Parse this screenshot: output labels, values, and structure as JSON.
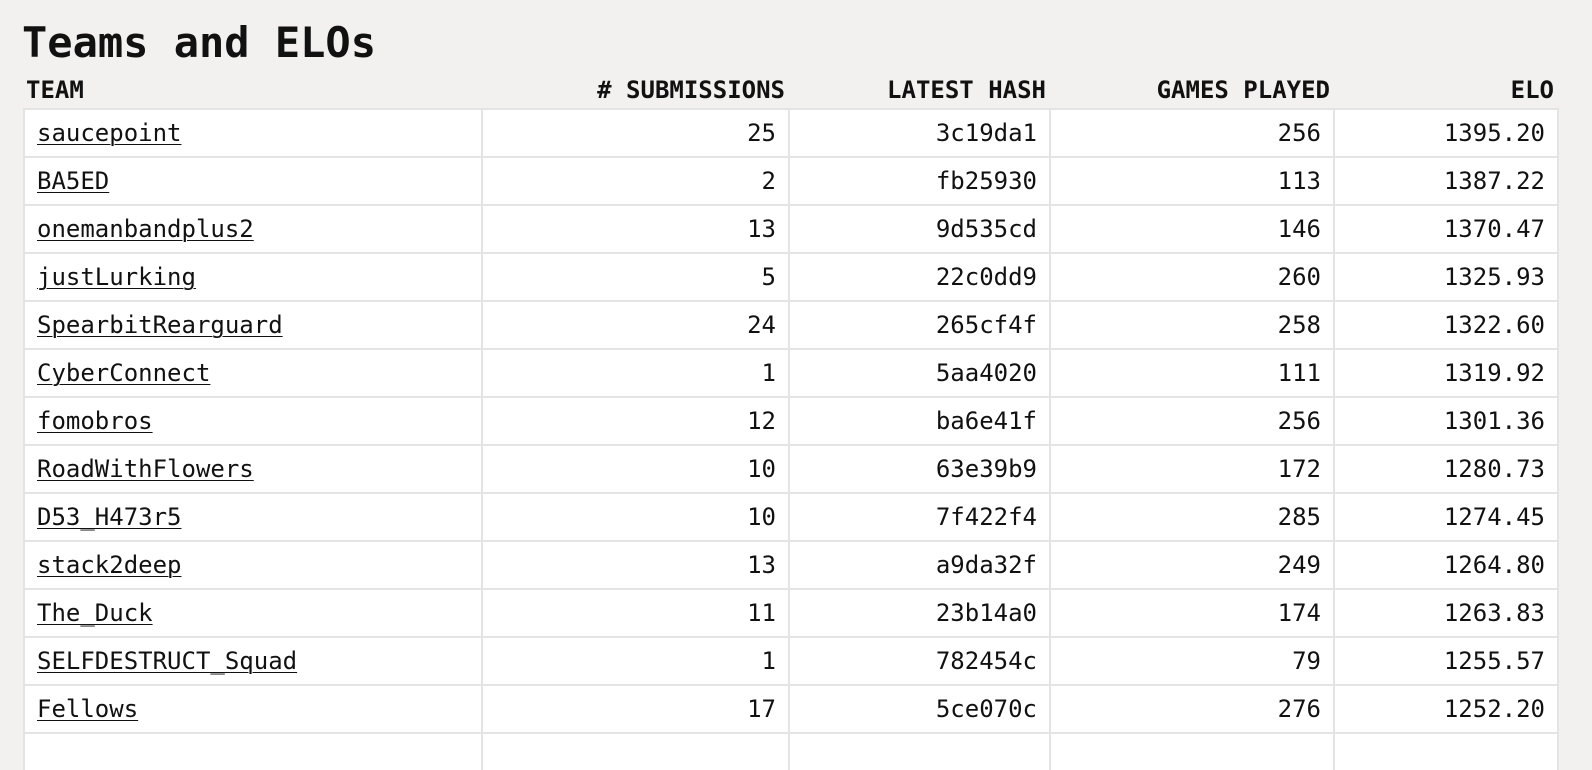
{
  "page": {
    "title": "Teams and ELOs"
  },
  "table": {
    "headers": {
      "team": "TEAM",
      "submissions": "# SUBMISSIONS",
      "latest_hash": "LATEST HASH",
      "games_played": "GAMES PLAYED",
      "elo": "ELO"
    },
    "rows": [
      {
        "team": "saucepoint",
        "submissions": "25",
        "latest_hash": "3c19da1",
        "games_played": "256",
        "elo": "1395.20"
      },
      {
        "team": "BA5ED",
        "submissions": "2",
        "latest_hash": "fb25930",
        "games_played": "113",
        "elo": "1387.22"
      },
      {
        "team": "onemanbandplus2",
        "submissions": "13",
        "latest_hash": "9d535cd",
        "games_played": "146",
        "elo": "1370.47"
      },
      {
        "team": "justLurking",
        "submissions": "5",
        "latest_hash": "22c0dd9",
        "games_played": "260",
        "elo": "1325.93"
      },
      {
        "team": "SpearbitRearguard",
        "submissions": "24",
        "latest_hash": "265cf4f",
        "games_played": "258",
        "elo": "1322.60"
      },
      {
        "team": "CyberConnect",
        "submissions": "1",
        "latest_hash": "5aa4020",
        "games_played": "111",
        "elo": "1319.92"
      },
      {
        "team": "fomobros",
        "submissions": "12",
        "latest_hash": "ba6e41f",
        "games_played": "256",
        "elo": "1301.36"
      },
      {
        "team": "RoadWithFlowers",
        "submissions": "10",
        "latest_hash": "63e39b9",
        "games_played": "172",
        "elo": "1280.73"
      },
      {
        "team": "D53_H473r5",
        "submissions": "10",
        "latest_hash": "7f422f4",
        "games_played": "285",
        "elo": "1274.45"
      },
      {
        "team": "stack2deep",
        "submissions": "13",
        "latest_hash": "a9da32f",
        "games_played": "249",
        "elo": "1264.80"
      },
      {
        "team": "The_Duck",
        "submissions": "11",
        "latest_hash": "23b14a0",
        "games_played": "174",
        "elo": "1263.83"
      },
      {
        "team": "SELFDESTRUCT_Squad",
        "submissions": "1",
        "latest_hash": "782454c",
        "games_played": "79",
        "elo": "1255.57"
      },
      {
        "team": "Fellows",
        "submissions": "17",
        "latest_hash": "5ce070c",
        "games_played": "276",
        "elo": "1252.20"
      },
      {
        "team": "",
        "submissions": "",
        "latest_hash": "",
        "games_played": "",
        "elo": ""
      }
    ]
  }
}
